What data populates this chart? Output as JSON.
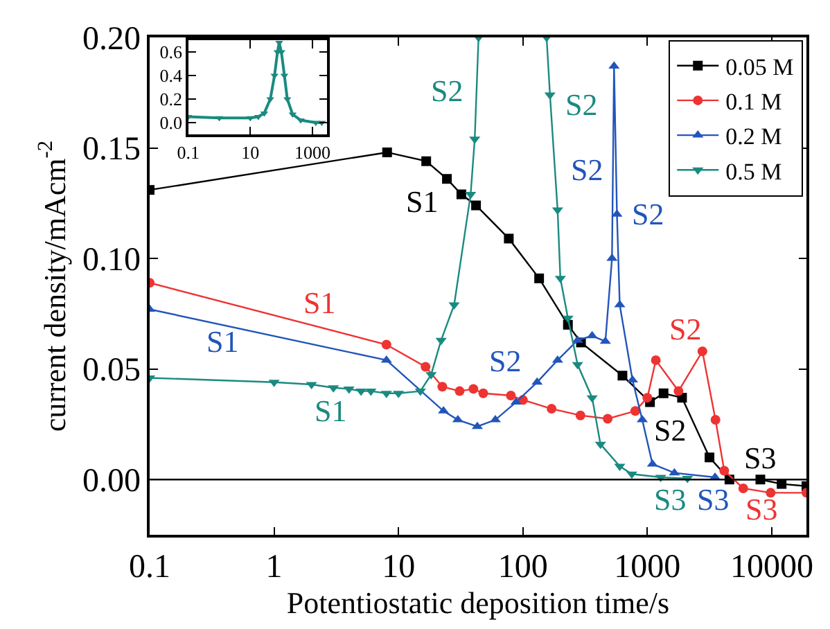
{
  "chart_data": [
    {
      "type": "line",
      "xlabel": "Potentiostatic deposition time/s",
      "ylabel": "current density/mAcm$^{-2}$",
      "log": "x",
      "xlim": [
        0.1,
        19000
      ],
      "xticks": [
        0.1,
        1,
        10,
        100,
        1000,
        10000
      ],
      "ylim": [
        -0.025,
        0.2
      ],
      "yticks": [
        {
          "value": 0,
          "label": "0.00"
        },
        {
          "value": 0.05,
          "label": "0.05"
        },
        {
          "value": 0.1,
          "label": "0.10"
        },
        {
          "value": 0.15,
          "label": "0.15"
        },
        {
          "value": 0.2,
          "label": "0.20"
        }
      ],
      "legend": "top right",
      "line_style": "solid",
      "ref_lines": [
        {
          "axis": "y",
          "value": 0,
          "color": "#000000"
        }
      ],
      "series": [
        {
          "name": "0.05 M",
          "color": "#000000",
          "marker": "square",
          "x": [
            0.1,
            8.1,
            16.7,
            24.5,
            32,
            42,
            77,
            135,
            230,
            293,
            631,
            1050,
            1350,
            1900,
            3160,
            4570,
            8100,
            12000,
            19000
          ],
          "values": [
            0.131,
            0.148,
            0.144,
            0.136,
            0.129,
            0.124,
            0.109,
            0.091,
            0.07,
            0.062,
            0.047,
            0.035,
            0.039,
            0.037,
            0.01,
            0.0,
            0.0,
            -0.002,
            -0.003
          ]
        },
        {
          "name": "0.1 M",
          "color": "#ee3333",
          "marker": "circle",
          "x": [
            0.1,
            8,
            16.5,
            22.5,
            31,
            40,
            48,
            80,
            100,
            170,
            290,
            480,
            800,
            1000,
            1170,
            1780,
            2770,
            3530,
            4150,
            5900,
            9800,
            19000
          ],
          "values": [
            0.089,
            0.061,
            0.051,
            0.042,
            0.04,
            0.041,
            0.039,
            0.038,
            0.036,
            0.032,
            0.029,
            0.0275,
            0.031,
            0.037,
            0.054,
            0.04,
            0.058,
            0.027,
            0.004,
            -0.004,
            -0.006,
            -0.006
          ]
        },
        {
          "name": "0.2 M",
          "color": "#2255bb",
          "marker": "triangle-up",
          "x": [
            0.1,
            8,
            23,
            30,
            43,
            60,
            88,
            130,
            190,
            275,
            360,
            460,
            520,
            540,
            570,
            600,
            760,
            910,
            1100,
            1650,
            3500
          ],
          "values": [
            0.077,
            0.054,
            0.031,
            0.027,
            0.024,
            0.027,
            0.035,
            0.044,
            0.054,
            0.063,
            0.065,
            0.0625,
            0.1,
            0.187,
            0.12,
            0.079,
            0.045,
            0.027,
            0.007,
            0.003,
            0.001
          ]
        },
        {
          "name": "0.5 M",
          "color": "#1a8a80",
          "marker": "triangle-down",
          "x": [
            0.1,
            1,
            2,
            3,
            4,
            5,
            6,
            8,
            10,
            15,
            18.3,
            22,
            28,
            38,
            41,
            44,
            100,
            155,
            165,
            190,
            200,
            230,
            275,
            360,
            420,
            600,
            750,
            1280,
            2100
          ],
          "values": [
            0.046,
            0.044,
            0.043,
            0.0415,
            0.041,
            0.04,
            0.04,
            0.039,
            0.039,
            0.04,
            0.0475,
            0.063,
            0.079,
            0.129,
            0.154,
            0.2,
            null,
            0.2,
            0.174,
            0.122,
            0.091,
            0.073,
            0.052,
            0.037,
            0.016,
            0.006,
            0.0025,
            0.001,
            0.0005
          ]
        }
      ],
      "annotations": [
        {
          "text": "S1",
          "x": 16.7,
          "y": 0.144
        },
        {
          "text": "S1",
          "x": 8,
          "y": 0.061
        },
        {
          "text": "S1",
          "x": 0.1,
          "y": 0.077
        },
        {
          "text": "S1",
          "x": 3,
          "y": 0.0415
        },
        {
          "text": "S2",
          "x": 41,
          "y": 0.154
        },
        {
          "text": "S2",
          "x": 165,
          "y": 0.174
        },
        {
          "text": "S2",
          "x": 520,
          "y": 0.1
        },
        {
          "text": "S2",
          "x": 570,
          "y": 0.12
        },
        {
          "text": "S2",
          "x": 88,
          "y": 0.035
        },
        {
          "text": "S2",
          "x": 2770,
          "y": 0.058
        },
        {
          "text": "S2",
          "x": 1900,
          "y": 0.037
        },
        {
          "text": "S3",
          "x": 8100,
          "y": 0.0
        },
        {
          "text": "S3",
          "x": 1280,
          "y": 0.001
        },
        {
          "text": "S3",
          "x": 3500,
          "y": 0.001
        },
        {
          "text": "S3",
          "x": 9800,
          "y": -0.006
        }
      ]
    },
    {
      "type": "line",
      "log": "x",
      "xlim": [
        0.1,
        3000
      ],
      "xticks": [
        0.1,
        10,
        1000
      ],
      "ylim": [
        -0.1,
        0.7
      ],
      "yticks": [
        {
          "value": 0,
          "label": "0.0"
        },
        {
          "value": 0.2,
          "label": "0.2"
        },
        {
          "value": 0.4,
          "label": "0.4"
        },
        {
          "value": 0.6,
          "label": "0.6"
        }
      ],
      "legend": false,
      "line_style": "solid",
      "series": [
        {
          "color": "#1a8a80",
          "marker": "triangle-down",
          "x": [
            0.1,
            1,
            10,
            18,
            28,
            44,
            60,
            75,
            85,
            100,
            125,
            155,
            230,
            420,
            1280,
            2000
          ],
          "values": [
            0.05,
            0.04,
            0.04,
            0.05,
            0.08,
            0.2,
            0.4,
            0.6,
            0.68,
            0.6,
            0.4,
            0.2,
            0.07,
            0.02,
            0.0,
            0.0
          ]
        }
      ]
    }
  ]
}
